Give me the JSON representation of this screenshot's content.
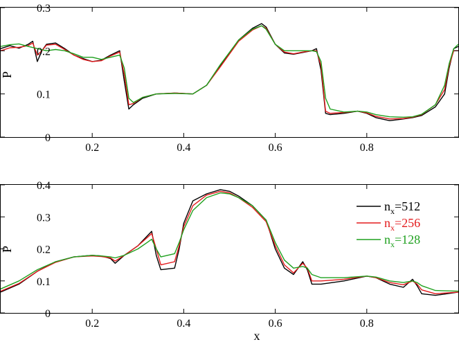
{
  "chart_data": [
    {
      "type": "line",
      "title": "",
      "xlabel": "",
      "ylabel": "P",
      "xlim": [
        0,
        1
      ],
      "ylim": [
        0,
        0.3
      ],
      "xticks": [
        0.2,
        0.4,
        0.6,
        0.8
      ],
      "xtick_labels": [
        "0.2",
        "0.4",
        "0.6",
        "0.8"
      ],
      "yticks": [
        0,
        0.1,
        0.2,
        0.3
      ],
      "ytick_labels": [
        "0",
        "0.1",
        "0.2",
        "0.3"
      ],
      "grid": false,
      "series": [
        {
          "color": "#000000",
          "x": [
            0,
            0.02,
            0.04,
            0.06,
            0.07,
            0.08,
            0.09,
            0.1,
            0.12,
            0.14,
            0.16,
            0.18,
            0.2,
            0.22,
            0.24,
            0.26,
            0.27,
            0.28,
            0.29,
            0.31,
            0.34,
            0.38,
            0.42,
            0.45,
            0.48,
            0.52,
            0.55,
            0.57,
            0.58,
            0.6,
            0.62,
            0.64,
            0.66,
            0.68,
            0.69,
            0.7,
            0.71,
            0.72,
            0.75,
            0.78,
            0.8,
            0.82,
            0.85,
            0.88,
            0.9,
            0.92,
            0.95,
            0.97,
            0.98,
            0.99,
            1.0
          ],
          "y": [
            0.205,
            0.212,
            0.206,
            0.215,
            0.222,
            0.175,
            0.2,
            0.215,
            0.218,
            0.205,
            0.19,
            0.182,
            0.175,
            0.178,
            0.19,
            0.2,
            0.13,
            0.065,
            0.075,
            0.09,
            0.1,
            0.102,
            0.1,
            0.12,
            0.165,
            0.225,
            0.252,
            0.263,
            0.255,
            0.215,
            0.195,
            0.192,
            0.196,
            0.2,
            0.205,
            0.155,
            0.055,
            0.052,
            0.055,
            0.06,
            0.055,
            0.045,
            0.038,
            0.042,
            0.045,
            0.05,
            0.07,
            0.1,
            0.16,
            0.205,
            0.21
          ]
        },
        {
          "color": "#e31a1c",
          "x": [
            0,
            0.02,
            0.04,
            0.06,
            0.07,
            0.08,
            0.09,
            0.1,
            0.12,
            0.14,
            0.16,
            0.18,
            0.2,
            0.22,
            0.24,
            0.26,
            0.27,
            0.28,
            0.29,
            0.31,
            0.34,
            0.38,
            0.42,
            0.45,
            0.48,
            0.52,
            0.55,
            0.57,
            0.58,
            0.6,
            0.62,
            0.64,
            0.66,
            0.68,
            0.69,
            0.7,
            0.71,
            0.72,
            0.75,
            0.78,
            0.8,
            0.82,
            0.85,
            0.88,
            0.9,
            0.92,
            0.95,
            0.97,
            0.98,
            0.99,
            1.0
          ],
          "y": [
            0.2,
            0.207,
            0.208,
            0.212,
            0.218,
            0.19,
            0.2,
            0.213,
            0.215,
            0.203,
            0.19,
            0.18,
            0.175,
            0.177,
            0.188,
            0.197,
            0.145,
            0.075,
            0.078,
            0.092,
            0.1,
            0.102,
            0.1,
            0.12,
            0.163,
            0.222,
            0.248,
            0.258,
            0.252,
            0.215,
            0.197,
            0.193,
            0.197,
            0.2,
            0.2,
            0.165,
            0.06,
            0.055,
            0.057,
            0.06,
            0.056,
            0.048,
            0.042,
            0.043,
            0.046,
            0.052,
            0.075,
            0.11,
            0.165,
            0.2,
            0.2
          ]
        },
        {
          "color": "#1ea01e",
          "x": [
            0,
            0.02,
            0.04,
            0.06,
            0.08,
            0.1,
            0.12,
            0.14,
            0.16,
            0.18,
            0.2,
            0.22,
            0.24,
            0.26,
            0.27,
            0.28,
            0.29,
            0.31,
            0.34,
            0.38,
            0.42,
            0.45,
            0.48,
            0.52,
            0.55,
            0.57,
            0.58,
            0.6,
            0.62,
            0.64,
            0.66,
            0.68,
            0.69,
            0.7,
            0.71,
            0.72,
            0.75,
            0.78,
            0.8,
            0.82,
            0.85,
            0.88,
            0.9,
            0.92,
            0.95,
            0.97,
            0.98,
            0.99,
            1.0
          ],
          "y": [
            0.21,
            0.214,
            0.216,
            0.21,
            0.205,
            0.2,
            0.203,
            0.2,
            0.193,
            0.185,
            0.185,
            0.18,
            0.185,
            0.19,
            0.16,
            0.09,
            0.08,
            0.092,
            0.1,
            0.101,
            0.1,
            0.12,
            0.168,
            0.225,
            0.25,
            0.258,
            0.25,
            0.215,
            0.2,
            0.2,
            0.2,
            0.2,
            0.198,
            0.175,
            0.09,
            0.065,
            0.058,
            0.06,
            0.058,
            0.052,
            0.047,
            0.046,
            0.047,
            0.053,
            0.075,
            0.12,
            0.17,
            0.205,
            0.215
          ]
        }
      ]
    },
    {
      "type": "line",
      "title": "",
      "xlabel": "x",
      "ylabel": "P",
      "xlim": [
        0,
        1
      ],
      "ylim": [
        0,
        0.4
      ],
      "xticks": [
        0.2,
        0.4,
        0.6,
        0.8
      ],
      "xtick_labels": [
        "0.2",
        "0.4",
        "0.6",
        "0.8"
      ],
      "yticks": [
        0,
        0.1,
        0.2,
        0.3,
        0.4
      ],
      "ytick_labels": [
        "0",
        "0.1",
        "0.2",
        "0.3",
        "0.4"
      ],
      "grid": false,
      "legend": {
        "placement": "right"
      },
      "series": [
        {
          "name": "n_x=512",
          "color": "#000000",
          "x": [
            0,
            0.04,
            0.08,
            0.12,
            0.16,
            0.2,
            0.22,
            0.24,
            0.25,
            0.27,
            0.3,
            0.32,
            0.33,
            0.34,
            0.35,
            0.38,
            0.39,
            0.4,
            0.42,
            0.45,
            0.48,
            0.5,
            0.52,
            0.55,
            0.58,
            0.6,
            0.62,
            0.64,
            0.66,
            0.67,
            0.68,
            0.7,
            0.75,
            0.8,
            0.82,
            0.85,
            0.88,
            0.9,
            0.91,
            0.92,
            0.95,
            1.0
          ],
          "y": [
            0.065,
            0.09,
            0.13,
            0.16,
            0.175,
            0.18,
            0.178,
            0.17,
            0.155,
            0.18,
            0.21,
            0.24,
            0.255,
            0.18,
            0.135,
            0.14,
            0.2,
            0.28,
            0.35,
            0.372,
            0.385,
            0.38,
            0.365,
            0.335,
            0.29,
            0.2,
            0.14,
            0.12,
            0.16,
            0.135,
            0.09,
            0.09,
            0.1,
            0.115,
            0.11,
            0.09,
            0.08,
            0.105,
            0.085,
            0.06,
            0.055,
            0.065
          ]
        },
        {
          "name": "n_x=256",
          "color": "#e31a1c",
          "x": [
            0,
            0.04,
            0.08,
            0.12,
            0.16,
            0.2,
            0.22,
            0.24,
            0.25,
            0.27,
            0.3,
            0.32,
            0.33,
            0.34,
            0.35,
            0.38,
            0.39,
            0.4,
            0.42,
            0.45,
            0.48,
            0.5,
            0.52,
            0.55,
            0.58,
            0.6,
            0.62,
            0.64,
            0.66,
            0.67,
            0.68,
            0.7,
            0.75,
            0.8,
            0.82,
            0.85,
            0.88,
            0.9,
            0.91,
            0.92,
            0.95,
            1.0
          ],
          "y": [
            0.068,
            0.092,
            0.13,
            0.158,
            0.175,
            0.178,
            0.176,
            0.172,
            0.162,
            0.18,
            0.21,
            0.235,
            0.248,
            0.2,
            0.15,
            0.16,
            0.21,
            0.27,
            0.335,
            0.368,
            0.38,
            0.375,
            0.36,
            0.33,
            0.285,
            0.21,
            0.15,
            0.125,
            0.155,
            0.14,
            0.1,
            0.1,
            0.105,
            0.115,
            0.11,
            0.095,
            0.088,
            0.1,
            0.09,
            0.072,
            0.06,
            0.065
          ]
        },
        {
          "name": "n_x=128",
          "color": "#1ea01e",
          "x": [
            0,
            0.04,
            0.08,
            0.12,
            0.16,
            0.2,
            0.22,
            0.24,
            0.25,
            0.27,
            0.3,
            0.32,
            0.33,
            0.34,
            0.35,
            0.38,
            0.39,
            0.4,
            0.42,
            0.45,
            0.48,
            0.5,
            0.52,
            0.55,
            0.58,
            0.6,
            0.62,
            0.64,
            0.66,
            0.67,
            0.68,
            0.7,
            0.75,
            0.8,
            0.82,
            0.85,
            0.88,
            0.9,
            0.91,
            0.92,
            0.95,
            1.0
          ],
          "y": [
            0.075,
            0.1,
            0.135,
            0.16,
            0.175,
            0.18,
            0.178,
            0.175,
            0.172,
            0.18,
            0.2,
            0.22,
            0.23,
            0.2,
            0.175,
            0.185,
            0.22,
            0.26,
            0.32,
            0.36,
            0.375,
            0.372,
            0.36,
            0.335,
            0.29,
            0.22,
            0.165,
            0.14,
            0.145,
            0.14,
            0.12,
            0.11,
            0.11,
            0.115,
            0.112,
            0.1,
            0.095,
            0.1,
            0.095,
            0.085,
            0.07,
            0.068
          ]
        }
      ]
    }
  ]
}
